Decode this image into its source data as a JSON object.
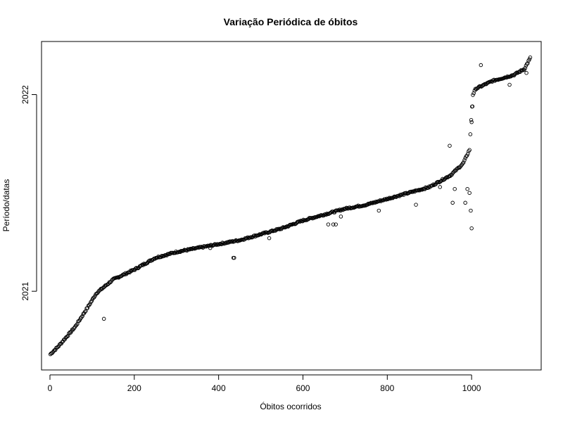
{
  "chart_data": {
    "type": "scatter",
    "title": "Variação Periódica de óbitos",
    "xlabel": "Óbitos ocorridos",
    "ylabel": "Período/datas",
    "xlim": [
      -20,
      1165
    ],
    "ylim": [
      2020.6,
      2022.27
    ],
    "x_ticks": [
      0,
      200,
      400,
      600,
      800,
      1000
    ],
    "y_ticks": [
      2021,
      2022
    ],
    "x_tick_labels": [
      "0",
      "200",
      "400",
      "600",
      "800",
      "1000"
    ],
    "y_tick_labels": [
      "2021",
      "2022"
    ],
    "grid": false,
    "legend": "none",
    "marker": "open-circle",
    "color": "#000000",
    "trend_knots": [
      [
        1,
        2020.68
      ],
      [
        20,
        2020.72
      ],
      [
        60,
        2020.82
      ],
      [
        90,
        2020.92
      ],
      [
        110,
        2020.99
      ],
      [
        150,
        2021.06
      ],
      [
        200,
        2021.11
      ],
      [
        250,
        2021.17
      ],
      [
        300,
        2021.2
      ],
      [
        350,
        2021.22
      ],
      [
        400,
        2021.24
      ],
      [
        450,
        2021.26
      ],
      [
        500,
        2021.29
      ],
      [
        550,
        2021.32
      ],
      [
        600,
        2021.36
      ],
      [
        650,
        2021.39
      ],
      [
        700,
        2021.42
      ],
      [
        750,
        2021.44
      ],
      [
        800,
        2021.47
      ],
      [
        850,
        2021.5
      ],
      [
        900,
        2021.53
      ],
      [
        950,
        2021.59
      ],
      [
        980,
        2021.65
      ],
      [
        995,
        2021.72
      ],
      [
        1000,
        2021.91
      ],
      [
        1003,
        2022.0
      ],
      [
        1010,
        2022.03
      ],
      [
        1050,
        2022.07
      ],
      [
        1100,
        2022.1
      ],
      [
        1125,
        2022.13
      ],
      [
        1140,
        2022.19
      ]
    ],
    "outliers": [
      {
        "x": 128,
        "y": 2020.86
      },
      {
        "x": 435,
        "y": 2021.17
      },
      {
        "x": 437,
        "y": 2021.17
      },
      {
        "x": 380,
        "y": 2021.22
      },
      {
        "x": 520,
        "y": 2021.27
      },
      {
        "x": 660,
        "y": 2021.34
      },
      {
        "x": 672,
        "y": 2021.34
      },
      {
        "x": 678,
        "y": 2021.34
      },
      {
        "x": 690,
        "y": 2021.38
      },
      {
        "x": 780,
        "y": 2021.41
      },
      {
        "x": 868,
        "y": 2021.44
      },
      {
        "x": 925,
        "y": 2021.53
      },
      {
        "x": 948,
        "y": 2021.74
      },
      {
        "x": 955,
        "y": 2021.45
      },
      {
        "x": 960,
        "y": 2021.52
      },
      {
        "x": 985,
        "y": 2021.45
      },
      {
        "x": 990,
        "y": 2021.52
      },
      {
        "x": 995,
        "y": 2021.5
      },
      {
        "x": 998,
        "y": 2021.41
      },
      {
        "x": 1000,
        "y": 2021.32
      },
      {
        "x": 1000,
        "y": 2021.86
      },
      {
        "x": 1002,
        "y": 2021.94
      },
      {
        "x": 1022,
        "y": 2022.15
      },
      {
        "x": 1090,
        "y": 2022.05
      },
      {
        "x": 1130,
        "y": 2022.11
      }
    ]
  }
}
